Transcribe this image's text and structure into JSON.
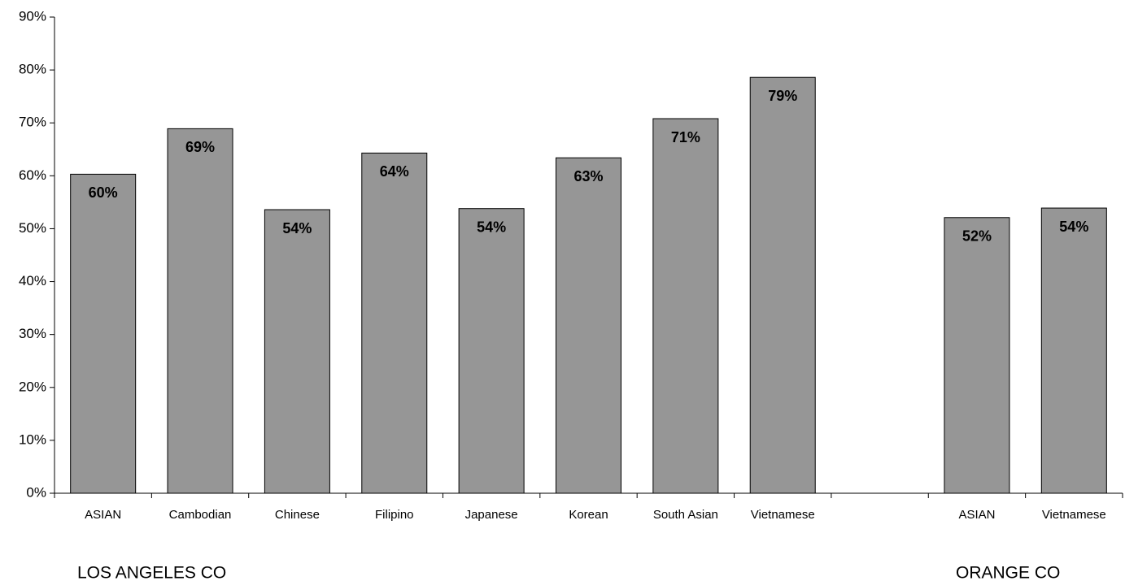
{
  "chart_data": {
    "type": "bar",
    "categories": [
      "ASIAN",
      "Cambodian",
      "Chinese",
      "Filipino",
      "Japanese",
      "Korean",
      "South Asian",
      "Vietnamese",
      null,
      "ASIAN",
      "Vietnamese"
    ],
    "values": [
      60.3,
      68.9,
      53.6,
      64.3,
      53.8,
      63.4,
      70.8,
      78.6,
      null,
      52.1,
      53.9
    ],
    "value_labels": [
      "60%",
      "69%",
      "54%",
      "64%",
      "54%",
      "63%",
      "71%",
      "79%",
      null,
      "52%",
      "54%"
    ],
    "color": "#969696",
    "ylim": [
      0,
      90
    ],
    "yticks": [
      {
        "value": 0,
        "label": "0%"
      },
      {
        "value": 10,
        "label": "10%"
      },
      {
        "value": 20,
        "label": "20%"
      },
      {
        "value": 30,
        "label": "30%"
      },
      {
        "value": 40,
        "label": "40%"
      },
      {
        "value": 50,
        "label": "50%"
      },
      {
        "value": 60,
        "label": "60%"
      },
      {
        "value": 70,
        "label": "70%"
      },
      {
        "value": 80,
        "label": "80%"
      },
      {
        "value": 90,
        "label": "90%"
      }
    ],
    "groups": [
      "LOS ANGELES CO",
      "ORANGE CO"
    ]
  }
}
